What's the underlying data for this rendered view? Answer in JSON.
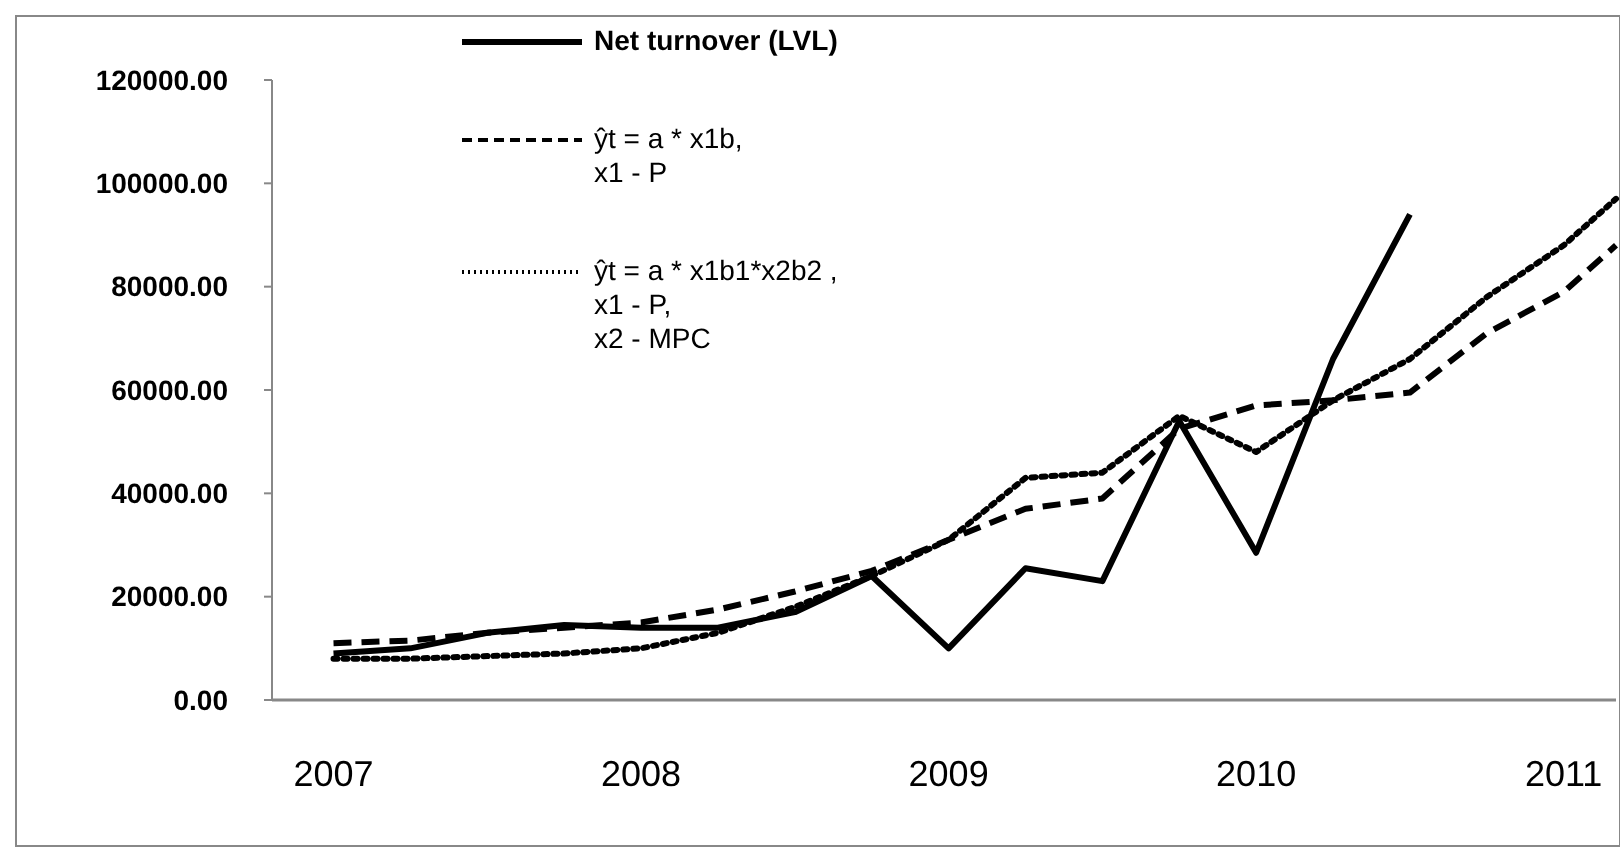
{
  "chart_data": {
    "type": "line",
    "xlim": [
      2006.8,
      2011.17
    ],
    "xticks": [
      2007,
      2008,
      2009,
      2010,
      2011
    ],
    "ylim": [
      0,
      120000
    ],
    "yticks": [
      {
        "value": 0,
        "label": "0.00"
      },
      {
        "value": 20000,
        "label": "20000.00"
      },
      {
        "value": 40000,
        "label": "40000.00"
      },
      {
        "value": 60000,
        "label": "60000.00"
      },
      {
        "value": 80000,
        "label": "80000.00"
      },
      {
        "value": 100000,
        "label": "100000.00"
      },
      {
        "value": 120000,
        "label": "120000.00"
      }
    ],
    "grid": false,
    "legend": "top left",
    "series": [
      {
        "name": "Net turnover (LVL)",
        "color": "#000000",
        "line_style": "solid",
        "x": [
          2007,
          2007.25,
          2007.5,
          2007.75,
          2008,
          2008.25,
          2008.5,
          2008.75,
          2009,
          2009.25,
          2009.5,
          2009.75,
          2010,
          2010.25,
          2010.5
        ],
        "values": [
          9000,
          10000,
          13000,
          14500,
          14000,
          14000,
          17000,
          24000,
          10000,
          25500,
          23000,
          54000,
          28500,
          66000,
          94000
        ]
      },
      {
        "name": "ŷt = a * x1b,\nx1 - P",
        "color": "#000000",
        "line_style": "dashed",
        "x": [
          2007,
          2007.25,
          2007.5,
          2007.75,
          2008,
          2008.25,
          2008.5,
          2008.75,
          2009,
          2009.25,
          2009.5,
          2009.75,
          2010,
          2010.25,
          2010.5,
          2010.75,
          2011,
          2011.17
        ],
        "values": [
          11000,
          11500,
          13000,
          14000,
          15000,
          17500,
          21000,
          25000,
          31000,
          37000,
          39000,
          52500,
          57000,
          58000,
          59500,
          71000,
          79000,
          88000
        ]
      },
      {
        "name": "ŷt = a * x1b1*x2b2 ,\nx1 - P,\nx2 - MPC",
        "color": "#000000",
        "line_style": "dotted",
        "x": [
          2007,
          2007.25,
          2007.5,
          2007.75,
          2008,
          2008.25,
          2008.5,
          2008.75,
          2009,
          2009.25,
          2009.5,
          2009.75,
          2010,
          2010.25,
          2010.5,
          2010.75,
          2011,
          2011.17
        ],
        "values": [
          8000,
          8000,
          8500,
          9000,
          10000,
          13000,
          18000,
          24000,
          31000,
          43000,
          44000,
          55000,
          48000,
          58000,
          66000,
          78000,
          88000,
          97000
        ]
      }
    ]
  }
}
